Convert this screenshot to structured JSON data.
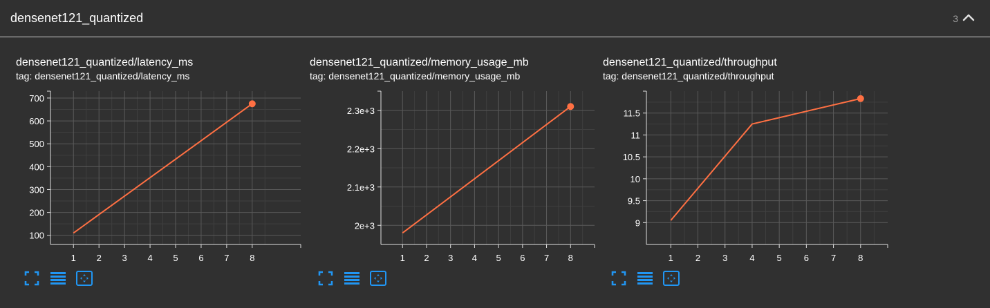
{
  "group": {
    "title": "densenet121_quantized",
    "count": "3"
  },
  "colors": {
    "line": "#ff7043",
    "grid": "#5a5a5a",
    "axis": "#e0e0e0",
    "icon": "#2196f3"
  },
  "toolbar_icons": [
    "fullscreen-icon",
    "data-table-icon",
    "fit-domain-icon"
  ],
  "cards": [
    {
      "title": "densenet121_quantized/latency_ms",
      "tag": "tag: densenet121_quantized/latency_ms"
    },
    {
      "title": "densenet121_quantized/memory_usage_mb",
      "tag": "tag: densenet121_quantized/memory_usage_mb"
    },
    {
      "title": "densenet121_quantized/throughput",
      "tag": "tag: densenet121_quantized/throughput"
    }
  ],
  "chart_data": [
    {
      "type": "line",
      "title": "densenet121_quantized/latency_ms",
      "x": [
        1,
        8
      ],
      "y": [
        110,
        675
      ],
      "xlim": [
        0.1,
        9.9
      ],
      "ylim": [
        60,
        730
      ],
      "xticks": [
        1,
        2,
        3,
        4,
        5,
        6,
        7,
        8
      ],
      "yticks": [
        100,
        200,
        300,
        400,
        500,
        600,
        700
      ],
      "ytick_labels": [
        "100",
        "200",
        "300",
        "400",
        "500",
        "600",
        "700"
      ],
      "grid": true
    },
    {
      "type": "line",
      "title": "densenet121_quantized/memory_usage_mb",
      "x": [
        1,
        8
      ],
      "y": [
        1980,
        2310
      ],
      "xlim": [
        0.1,
        9.0
      ],
      "ylim": [
        1950,
        2350
      ],
      "xticks": [
        1,
        2,
        3,
        4,
        5,
        6,
        7,
        8
      ],
      "yticks": [
        2000,
        2100,
        2200,
        2300
      ],
      "ytick_labels": [
        "2e+3",
        "2.1e+3",
        "2.2e+3",
        "2.3e+3"
      ],
      "grid": true
    },
    {
      "type": "line",
      "title": "densenet121_quantized/throughput",
      "x": [
        1,
        4,
        8
      ],
      "y": [
        9.05,
        11.25,
        11.83
      ],
      "xlim": [
        0.1,
        9.0
      ],
      "ylim": [
        8.5,
        12.0
      ],
      "xticks": [
        1,
        2,
        3,
        4,
        5,
        6,
        7,
        8
      ],
      "yticks": [
        9,
        9.5,
        10,
        10.5,
        11,
        11.5
      ],
      "ytick_labels": [
        "9",
        "9.5",
        "10",
        "10.5",
        "11",
        "11.5"
      ],
      "grid": true
    }
  ]
}
